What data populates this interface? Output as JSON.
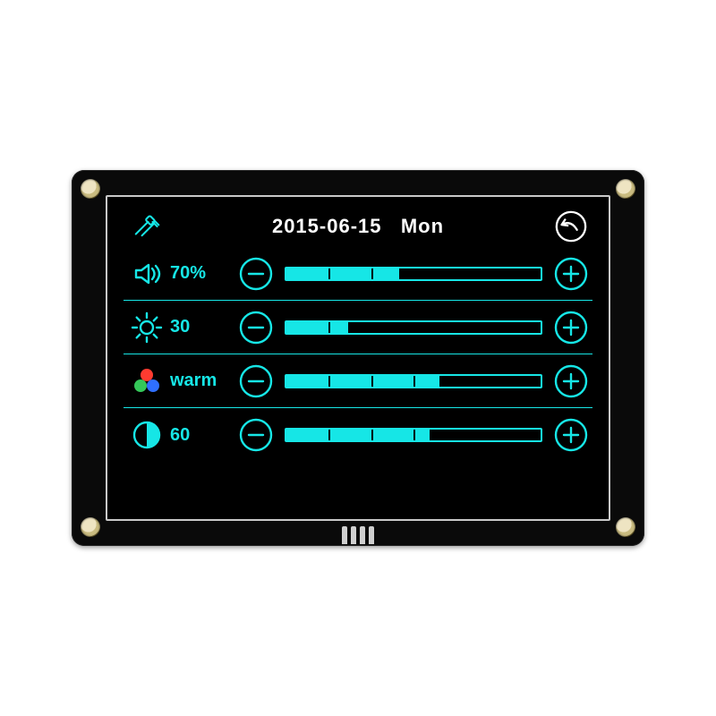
{
  "colors": {
    "accent": "#16e6e6",
    "white": "#ffffff",
    "divider": "#16e6e6",
    "rgb_red": "#ff3b30",
    "rgb_green": "#34c759",
    "rgb_blue": "#2f6fff"
  },
  "header": {
    "date": "2015-06-15",
    "day": "Mon"
  },
  "rows": [
    {
      "id": "volume",
      "icon": "speaker",
      "value": "70%",
      "fill_pct": 44,
      "marker_pct": 44,
      "accent": true
    },
    {
      "id": "brightness",
      "icon": "sun",
      "value": "30",
      "fill_pct": 24,
      "marker_pct": 24,
      "accent": true
    },
    {
      "id": "color",
      "icon": "rgb",
      "value": "warm",
      "fill_pct": 60,
      "marker_pct": 60,
      "accent": true
    },
    {
      "id": "contrast",
      "icon": "half-moon",
      "value": "60",
      "fill_pct": 56,
      "marker_pct": 56,
      "accent": true
    }
  ],
  "bar": {
    "segments": 6
  }
}
